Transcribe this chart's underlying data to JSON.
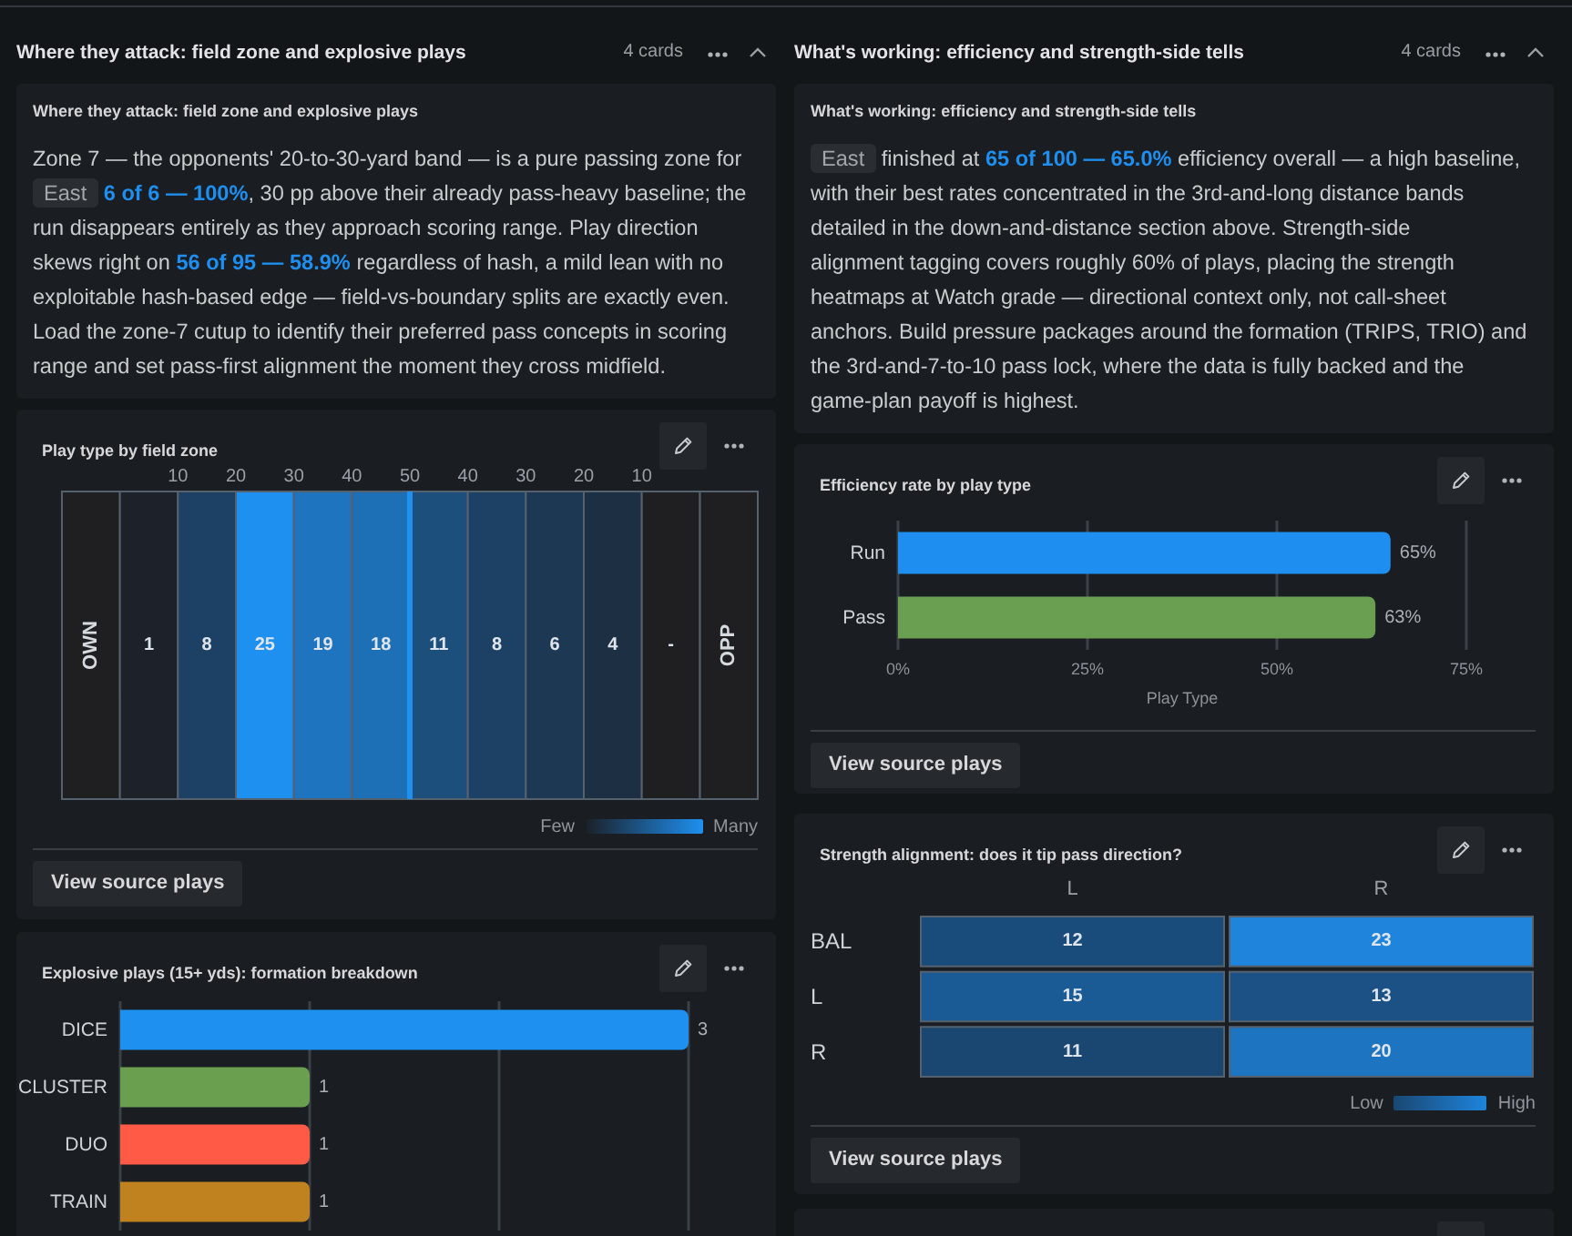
{
  "chart_data": [
    {
      "type": "other",
      "title": "Where they attack: field zone and explosive plays",
      "annotations": [
        "4 cards"
      ]
    },
    {
      "type": "other",
      "title": "Where they attack: field zone and explosive plays",
      "annotations": [
        "Zone 7 — the opponents' 20-to-30-yard band — is a pure passing zone for",
        "East",
        "6 of 6 — 100%",
        ", 30 pp above their already pass-heavy baseline; the",
        "run disappears entirely as they approach scoring range. Play direction",
        "skews right on",
        "56 of 95 — 58.9%",
        "regardless of hash, a mild lean with no",
        "exploitable hash-based edge — field-vs-boundary splits are exactly even.",
        "Load the zone-7 cutup to identify their preferred pass concepts in scoring",
        "range and set pass-first alignment the moment they cross midfield."
      ]
    },
    {
      "type": "heatmap",
      "title": "Play type by field zone",
      "x": [
        5,
        15,
        25,
        35,
        45,
        55,
        65,
        75,
        85,
        95
      ],
      "y_categories": [
        null
      ],
      "cells": [
        [
          1,
          8,
          25,
          19,
          18,
          11,
          8,
          6,
          4,
          null
        ]
      ],
      "data_labels": true,
      "xlim": [
        -10,
        110
      ],
      "xticks": [
        10,
        20,
        30,
        40,
        50
      ],
      "x2lim": [
        110,
        -10
      ],
      "x2ticks": [
        40,
        30,
        20,
        10
      ],
      "bands": [
        {
          "axis": "x",
          "from": -10,
          "to": 0,
          "label": "OWN",
          "color": "#1f1f21"
        },
        {
          "axis": "x",
          "from": 100,
          "to": 110,
          "label": "OPP",
          "color": "#1f1f21"
        }
      ],
      "ref_lines": [
        {
          "axis": "x",
          "value": 50,
          "color": "#1e90f0"
        }
      ],
      "annotations": [
        "Few",
        "Many",
        "View source plays",
        "-"
      ]
    },
    {
      "type": "bar",
      "orientation": "horizontal",
      "title": "Explosive plays (15+ yds): formation breakdown",
      "categories": [
        "DICE",
        "CLUSTER",
        "DUO",
        "TRAIN"
      ],
      "values": [
        3,
        1,
        1,
        1
      ],
      "colors": [
        "#1e90f0",
        "#6a9f50",
        "#ff5a46",
        "#c0821e"
      ],
      "xlim": [
        0,
        3
      ],
      "xticks": [
        {
          "value": 0,
          "label": null
        },
        {
          "value": 1,
          "label": null
        },
        {
          "value": 2,
          "label": null
        },
        {
          "value": 3,
          "label": null
        }
      ],
      "grid": "x",
      "tick_labels": "y",
      "data_labels": true
    },
    {
      "type": "other",
      "title": "What's working: efficiency and strength-side tells",
      "annotations": [
        "4 cards"
      ]
    },
    {
      "type": "other",
      "title": "What's working: efficiency and strength-side tells",
      "annotations": [
        "East",
        "finished at",
        "65 of 100 — 65.0%",
        "efficiency overall — a high baseline,",
        "with their best rates concentrated in the 3rd-and-long distance bands",
        "detailed in the down-and-distance section above. Strength-side",
        "alignment tagging covers roughly 60% of plays, placing the strength",
        "heatmaps at Watch grade — directional context only, not call-sheet",
        "anchors. Build pressure packages around the formation (TRIPS, TRIO) and",
        "the 3rd-and-7-to-10 pass lock, where the data is fully backed and the",
        "game-plan payoff is highest."
      ]
    },
    {
      "type": "bar",
      "orientation": "horizontal",
      "title": "Efficiency rate by play type",
      "categories": [
        "Run",
        "Pass"
      ],
      "values": [
        65,
        63
      ],
      "colors": [
        "#1e8ff0",
        "#6a9e50"
      ],
      "xlim": [
        0,
        75
      ],
      "xticks": [
        {
          "value": 0,
          "label": "0%"
        },
        {
          "value": 25,
          "label": "25%"
        },
        {
          "value": 50,
          "label": "50%"
        },
        {
          "value": 75,
          "label": "75%"
        }
      ],
      "xlabel": "Play Type",
      "grid": "x",
      "value_labels": [
        "65%",
        "63%"
      ],
      "annotations": [
        "View source plays"
      ]
    },
    {
      "type": "heatmap",
      "title": "Strength alignment: does it tip pass direction?",
      "categories": [
        "L",
        "R"
      ],
      "y_categories": [
        "BAL",
        "L",
        "R"
      ],
      "cells": [
        [
          12,
          23
        ],
        [
          15,
          13
        ],
        [
          11,
          20
        ]
      ],
      "data_labels": true,
      "annotations": [
        "Low",
        "High",
        "View source plays"
      ]
    }
  ]
}
